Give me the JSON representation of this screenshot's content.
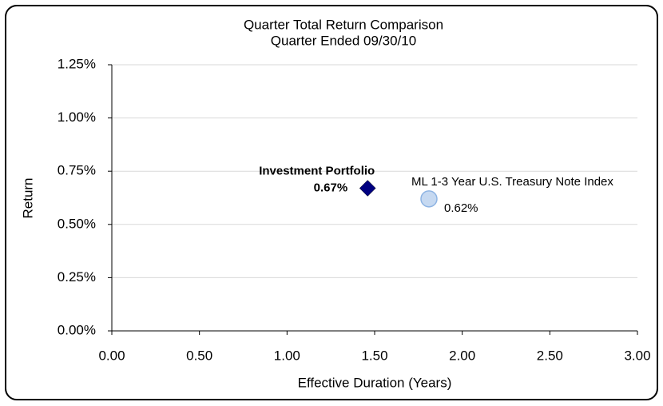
{
  "chart_data": {
    "type": "scatter",
    "title": "Quarter Total Return Comparison",
    "subtitle": "Quarter Ended 09/30/10",
    "x_label": "Effective Duration (Years)",
    "y_label": "Return",
    "xlim": [
      0,
      3
    ],
    "ylim": [
      0,
      1.25
    ],
    "xticks": [
      {
        "value": 0,
        "label": "0.00"
      },
      {
        "value": 0.5,
        "label": "0.50"
      },
      {
        "value": 1,
        "label": "1.00"
      },
      {
        "value": 1.5,
        "label": "1.50"
      },
      {
        "value": 2,
        "label": "2.00"
      },
      {
        "value": 2.5,
        "label": "2.50"
      },
      {
        "value": 3,
        "label": "3.00"
      }
    ],
    "yticks": [
      {
        "value": 0,
        "label": "0.00%"
      },
      {
        "value": 0.25,
        "label": "0.25%"
      },
      {
        "value": 0.5,
        "label": "0.50%"
      },
      {
        "value": 0.75,
        "label": "0.75%"
      },
      {
        "value": 1,
        "label": "1.00%"
      },
      {
        "value": 1.25,
        "label": "1.25%"
      }
    ],
    "grid": true,
    "series": [
      {
        "name": "Investment Portfolio",
        "color": "#000080",
        "marker": "diamond",
        "x": [
          1.46
        ],
        "values": [
          0.67
        ],
        "value_labels": [
          "0.67%"
        ]
      },
      {
        "name": "ML 1-3 Year U.S. Treasury Note Index",
        "color": "#c6d9f1",
        "marker": "circle",
        "x": [
          1.81
        ],
        "values": [
          0.62
        ],
        "value_labels": [
          "0.62%"
        ]
      }
    ]
  }
}
